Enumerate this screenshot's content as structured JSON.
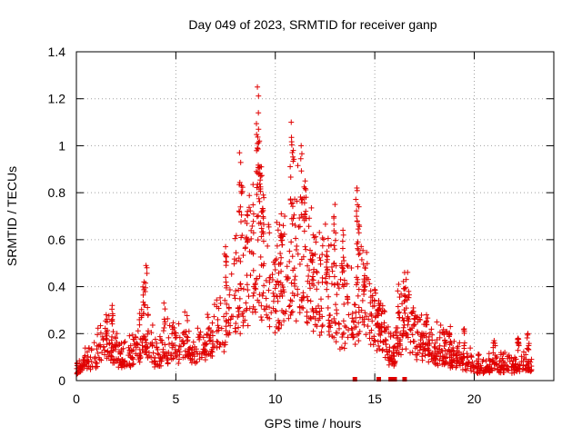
{
  "chart_data": {
    "type": "scatter",
    "title": "Day 049 of 2023, SRMTID for receiver ganp",
    "xlabel": "GPS time / hours",
    "ylabel": "SRMTID / TECUs",
    "xlim": [
      0,
      24
    ],
    "ylim": [
      0,
      1.4
    ],
    "xticks": [
      0,
      5,
      10,
      15,
      20
    ],
    "yticks": [
      0,
      0.2,
      0.4,
      0.6,
      0.8,
      1,
      1.2,
      1.4
    ],
    "xtick_labels": [
      "0",
      "5",
      "10",
      "15",
      "20"
    ],
    "ytick_labels": [
      "0",
      "0.2",
      "0.4",
      "0.6",
      "0.8",
      "1",
      "1.2",
      "1.4"
    ],
    "grid": true,
    "marker": "+",
    "color": "#e00000",
    "envelope": [
      [
        0.0,
        0.05
      ],
      [
        0.5,
        0.09
      ],
      [
        1.0,
        0.11
      ],
      [
        1.5,
        0.19
      ],
      [
        2.0,
        0.12
      ],
      [
        2.5,
        0.1
      ],
      [
        3.0,
        0.13
      ],
      [
        3.5,
        0.22
      ],
      [
        4.0,
        0.09
      ],
      [
        4.5,
        0.15
      ],
      [
        5.0,
        0.14
      ],
      [
        5.5,
        0.16
      ],
      [
        6.0,
        0.15
      ],
      [
        6.5,
        0.18
      ],
      [
        7.0,
        0.19
      ],
      [
        7.5,
        0.25
      ],
      [
        8.0,
        0.36
      ],
      [
        8.5,
        0.45
      ],
      [
        9.0,
        0.56
      ],
      [
        9.5,
        0.44
      ],
      [
        10.0,
        0.35
      ],
      [
        10.5,
        0.48
      ],
      [
        11.0,
        0.55
      ],
      [
        11.5,
        0.45
      ],
      [
        12.0,
        0.42
      ],
      [
        12.5,
        0.38
      ],
      [
        13.0,
        0.31
      ],
      [
        13.5,
        0.27
      ],
      [
        14.0,
        0.3
      ],
      [
        14.5,
        0.36
      ],
      [
        15.0,
        0.24
      ],
      [
        15.5,
        0.16
      ],
      [
        16.0,
        0.12
      ],
      [
        16.5,
        0.28
      ],
      [
        17.0,
        0.18
      ],
      [
        17.5,
        0.16
      ],
      [
        18.0,
        0.14
      ],
      [
        18.5,
        0.13
      ],
      [
        19.0,
        0.11
      ],
      [
        19.5,
        0.09
      ],
      [
        20.0,
        0.07
      ],
      [
        20.5,
        0.06
      ],
      [
        21.0,
        0.07
      ],
      [
        21.5,
        0.07
      ],
      [
        22.0,
        0.06
      ],
      [
        22.5,
        0.07
      ],
      [
        22.9,
        0.06
      ]
    ],
    "spikes": [
      [
        1.8,
        0.32
      ],
      [
        1.5,
        0.28
      ],
      [
        3.5,
        0.49
      ],
      [
        3.4,
        0.42
      ],
      [
        4.4,
        0.33
      ],
      [
        7.5,
        0.57
      ],
      [
        8.2,
        0.97
      ],
      [
        8.3,
        0.83
      ],
      [
        8.6,
        0.72
      ],
      [
        9.1,
        1.25
      ],
      [
        9.15,
        1.14
      ],
      [
        9.2,
        1.02
      ],
      [
        9.3,
        0.91
      ],
      [
        9.4,
        0.79
      ],
      [
        10.3,
        0.71
      ],
      [
        10.8,
        1.1
      ],
      [
        10.9,
        0.98
      ],
      [
        11.3,
        1.0
      ],
      [
        11.5,
        0.85
      ],
      [
        11.9,
        0.62
      ],
      [
        12.6,
        0.55
      ],
      [
        13.0,
        0.75
      ],
      [
        13.4,
        0.64
      ],
      [
        14.1,
        0.82
      ],
      [
        14.2,
        0.74
      ],
      [
        14.5,
        0.48
      ],
      [
        15.2,
        0.34
      ],
      [
        16.2,
        0.41
      ],
      [
        16.5,
        0.46
      ],
      [
        16.7,
        0.38
      ],
      [
        17.6,
        0.28
      ],
      [
        18.8,
        0.23
      ],
      [
        19.5,
        0.22
      ],
      [
        21.0,
        0.17
      ],
      [
        22.2,
        0.18
      ],
      [
        22.7,
        0.2
      ]
    ],
    "zero_markers": [
      14.0,
      15.2,
      15.8,
      16.0,
      16.5
    ],
    "x_end": 22.9
  }
}
